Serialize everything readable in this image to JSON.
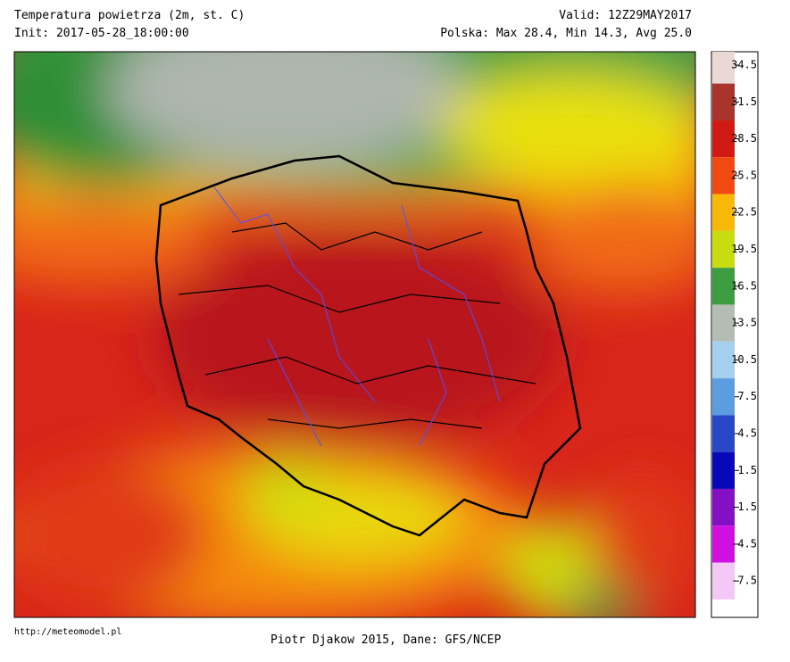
{
  "header": {
    "title": "Temperatura powietrza (2m, st. C)",
    "init": "Init: 2017-05-28_18:00:00",
    "valid": "Valid: 12Z29MAY2017",
    "stats": "Polska: Max 28.4, Min 14.3, Avg 25.0"
  },
  "colorbar": {
    "ticks": [
      34.5,
      31.5,
      28.5,
      25.5,
      22.5,
      19.5,
      16.5,
      13.5,
      10.5,
      7.5,
      4.5,
      1.5,
      -1.5,
      -4.5,
      -7.5
    ],
    "colors": [
      "#ead8d4",
      "#a8342c",
      "#d21a14",
      "#f04a12",
      "#f8b808",
      "#c8dc10",
      "#3c9c40",
      "#b4bcb4",
      "#a4d0ee",
      "#5c9ce0",
      "#2848c8",
      "#0808b8",
      "#8410c4",
      "#d010e0",
      "#f4c8f4"
    ]
  },
  "footer": {
    "source_url": "http://meteomodel.pl",
    "credit": "Piotr Djakow 2015, Dane: GFS/NCEP"
  }
}
